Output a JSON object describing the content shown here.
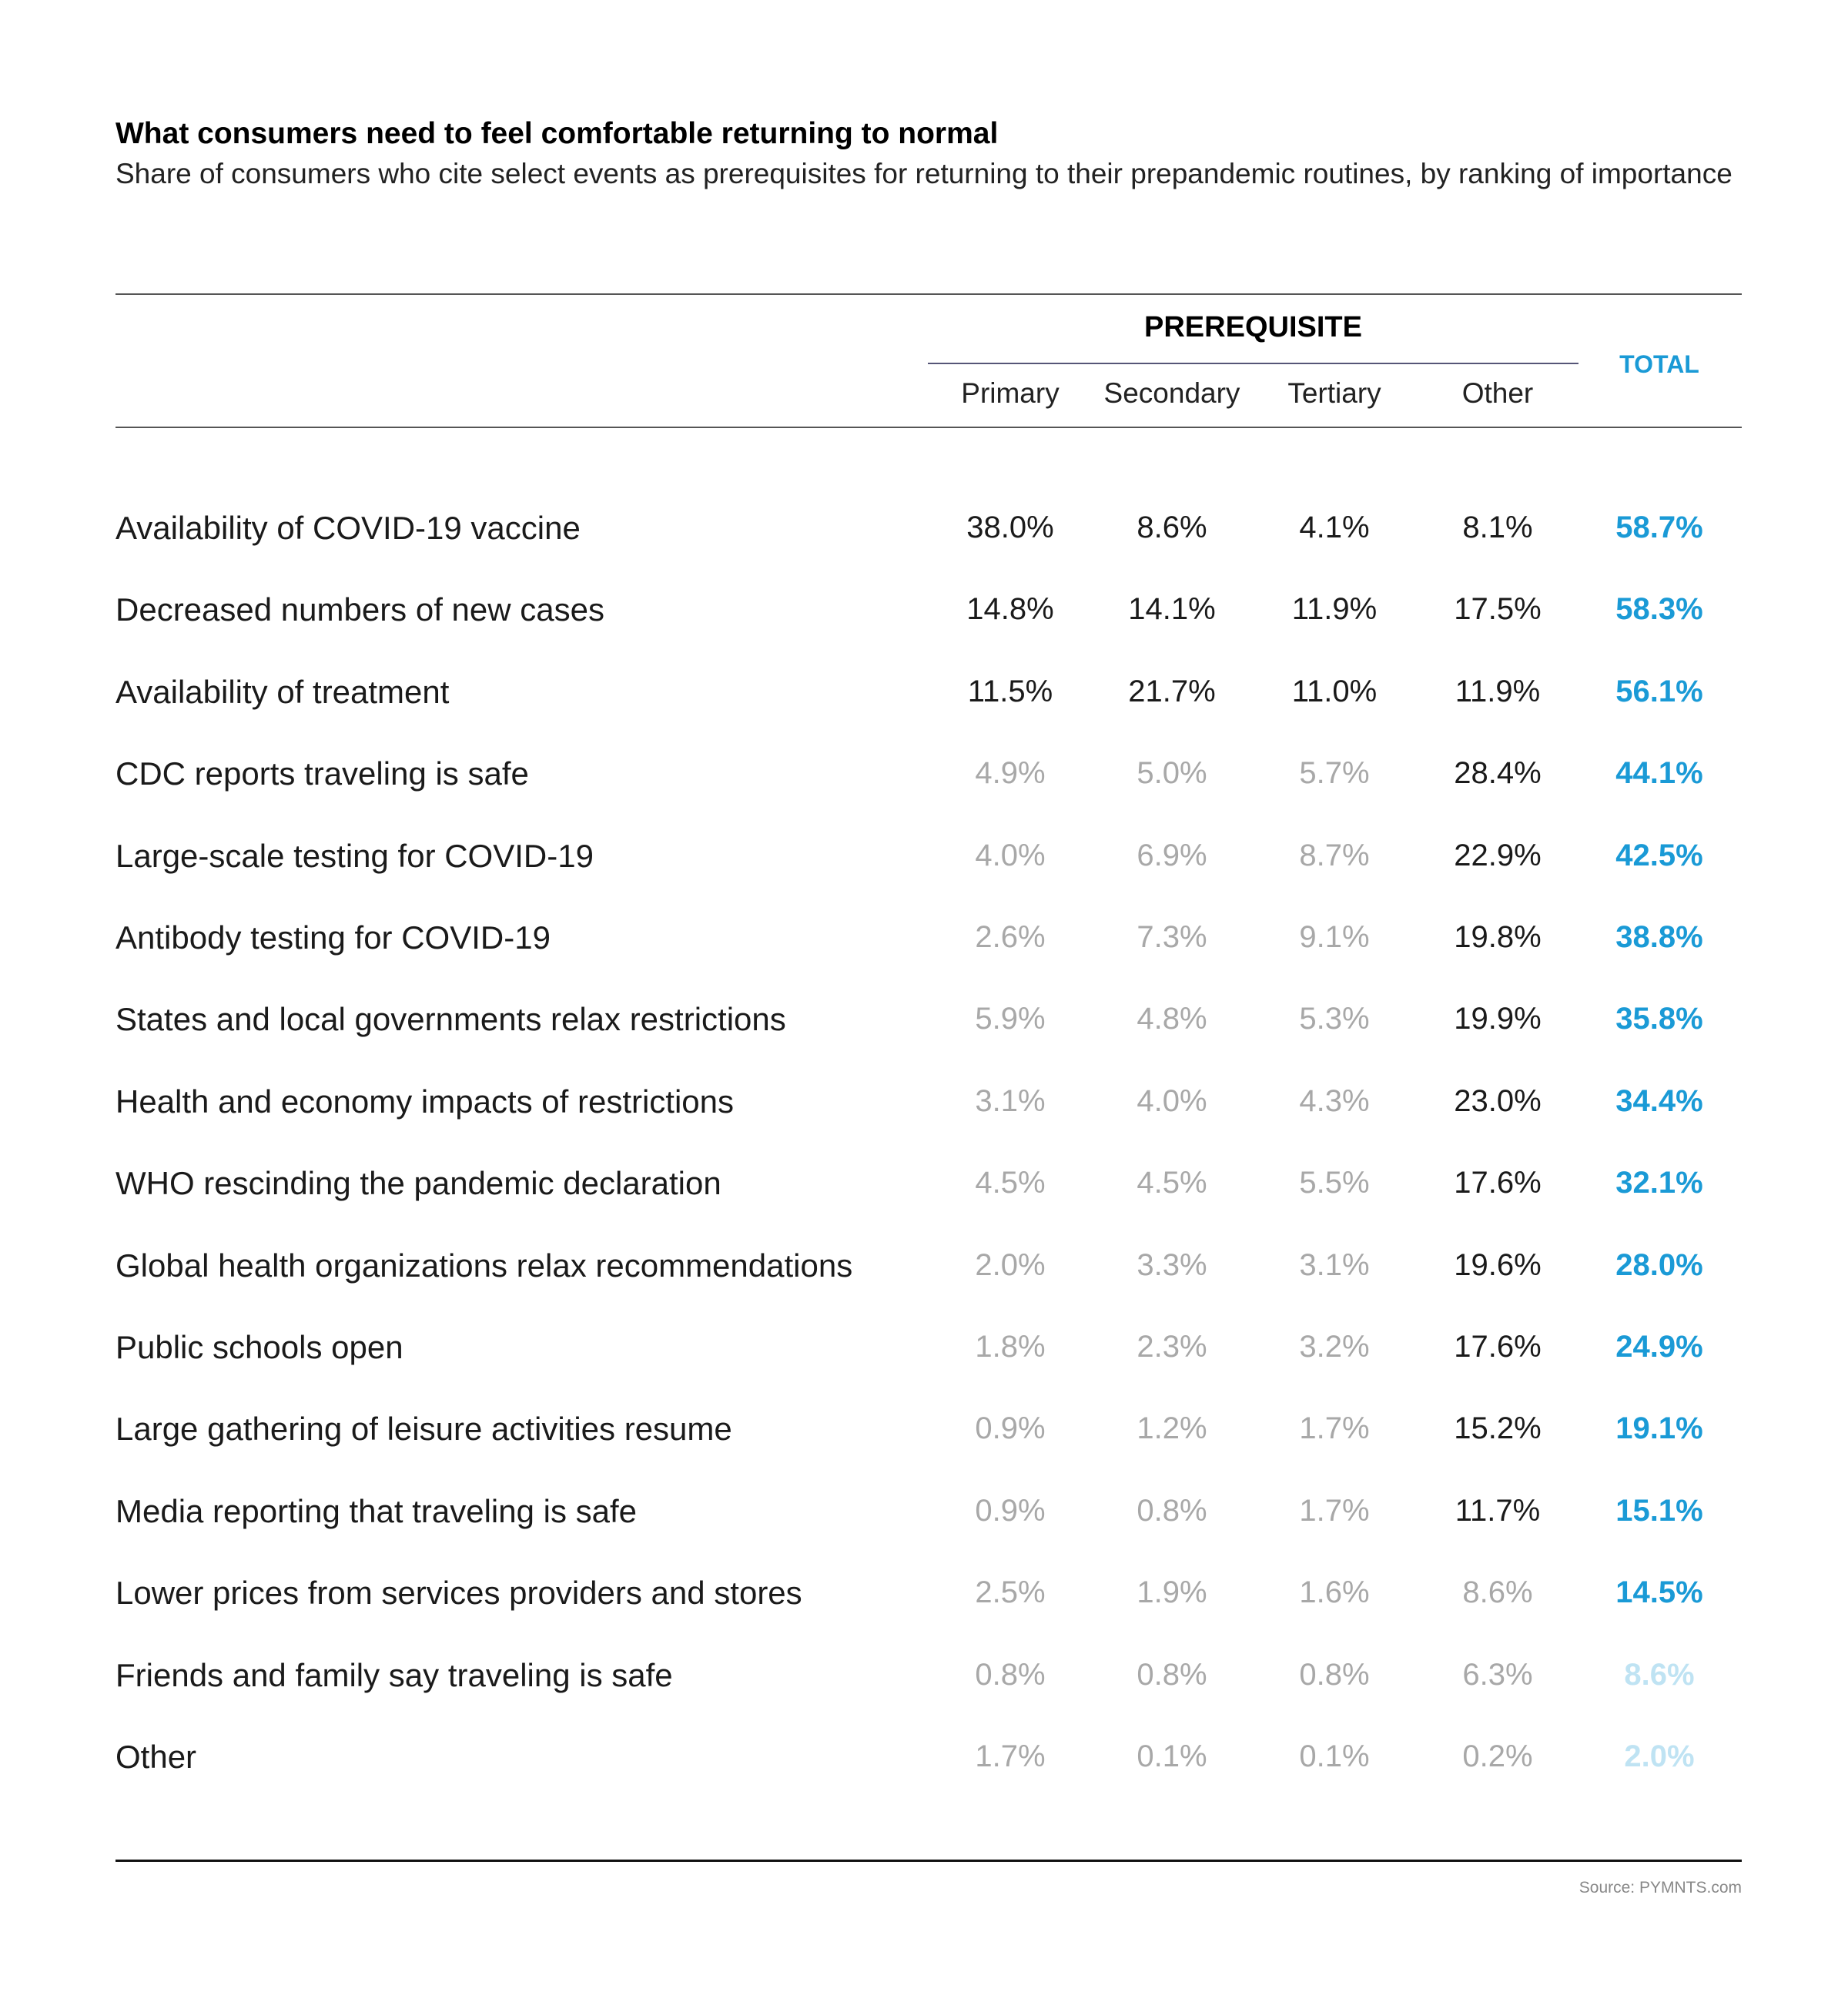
{
  "chart_data": {
    "type": "table",
    "title": "What consumers need to feel comfortable returning to normal",
    "subtitle": "Share of consumers who cite select events as prerequisites for returning to their prepandemic routines, by ranking of importance",
    "group_header": "PREREQUISITE",
    "columns": [
      "Primary",
      "Secondary",
      "Tertiary",
      "Other"
    ],
    "total_header": "TOTAL",
    "rows": [
      {
        "label": "Availability of COVID-19 vaccine",
        "values": [
          "38.0%",
          "8.6%",
          "4.1%",
          "8.1%"
        ],
        "total": "58.7%",
        "dark": [
          true,
          true,
          true,
          true
        ],
        "total_light": false
      },
      {
        "label": "Decreased numbers of new cases",
        "values": [
          "14.8%",
          "14.1%",
          "11.9%",
          "17.5%"
        ],
        "total": "58.3%",
        "dark": [
          true,
          true,
          true,
          true
        ],
        "total_light": false
      },
      {
        "label": "Availability of treatment",
        "values": [
          "11.5%",
          "21.7%",
          "11.0%",
          "11.9%"
        ],
        "total": "56.1%",
        "dark": [
          true,
          true,
          true,
          true
        ],
        "total_light": false
      },
      {
        "label": "CDC reports traveling is safe",
        "values": [
          "4.9%",
          "5.0%",
          "5.7%",
          "28.4%"
        ],
        "total": "44.1%",
        "dark": [
          false,
          false,
          false,
          true
        ],
        "total_light": false
      },
      {
        "label": "Large-scale testing for COVID-19",
        "values": [
          "4.0%",
          "6.9%",
          "8.7%",
          "22.9%"
        ],
        "total": "42.5%",
        "dark": [
          false,
          false,
          false,
          true
        ],
        "total_light": false
      },
      {
        "label": "Antibody testing for COVID-19",
        "values": [
          "2.6%",
          "7.3%",
          "9.1%",
          "19.8%"
        ],
        "total": "38.8%",
        "dark": [
          false,
          false,
          false,
          true
        ],
        "total_light": false
      },
      {
        "label": "States and local governments relax restrictions",
        "values": [
          "5.9%",
          "4.8%",
          "5.3%",
          "19.9%"
        ],
        "total": "35.8%",
        "dark": [
          false,
          false,
          false,
          true
        ],
        "total_light": false
      },
      {
        "label": "Health and economy impacts of restrictions",
        "values": [
          "3.1%",
          "4.0%",
          "4.3%",
          "23.0%"
        ],
        "total": "34.4%",
        "dark": [
          false,
          false,
          false,
          true
        ],
        "total_light": false
      },
      {
        "label": "WHO rescinding the pandemic declaration",
        "values": [
          "4.5%",
          "4.5%",
          "5.5%",
          "17.6%"
        ],
        "total": "32.1%",
        "dark": [
          false,
          false,
          false,
          true
        ],
        "total_light": false
      },
      {
        "label": "Global health organizations relax recommendations",
        "values": [
          "2.0%",
          "3.3%",
          "3.1%",
          "19.6%"
        ],
        "total": "28.0%",
        "dark": [
          false,
          false,
          false,
          true
        ],
        "total_light": false
      },
      {
        "label": "Public schools open",
        "values": [
          "1.8%",
          "2.3%",
          "3.2%",
          "17.6%"
        ],
        "total": "24.9%",
        "dark": [
          false,
          false,
          false,
          true
        ],
        "total_light": false
      },
      {
        "label": "Large gathering of leisure activities resume",
        "values": [
          "0.9%",
          "1.2%",
          "1.7%",
          "15.2%"
        ],
        "total": "19.1%",
        "dark": [
          false,
          false,
          false,
          true
        ],
        "total_light": false
      },
      {
        "label": "Media reporting that traveling is safe",
        "values": [
          "0.9%",
          "0.8%",
          "1.7%",
          "11.7%"
        ],
        "total": "15.1%",
        "dark": [
          false,
          false,
          false,
          true
        ],
        "total_light": false
      },
      {
        "label": "Lower prices from services providers and stores",
        "values": [
          "2.5%",
          "1.9%",
          "1.6%",
          "8.6%"
        ],
        "total": "14.5%",
        "dark": [
          false,
          false,
          false,
          false
        ],
        "total_light": false
      },
      {
        "label": "Friends and family say traveling is safe",
        "values": [
          "0.8%",
          "0.8%",
          "0.8%",
          "6.3%"
        ],
        "total": "8.6%",
        "dark": [
          false,
          false,
          false,
          false
        ],
        "total_light": true
      },
      {
        "label": "Other",
        "values": [
          "1.7%",
          "0.1%",
          "0.1%",
          "0.2%"
        ],
        "total": "2.0%",
        "dark": [
          false,
          false,
          false,
          false
        ],
        "total_light": true
      }
    ],
    "source": "Source: PYMNTS.com",
    "colors": {
      "total": "#1a9ad6",
      "total_light": "#bfe3f3",
      "dark_value": "#1a1a1a",
      "gray_value": "#a8a8a8"
    }
  }
}
